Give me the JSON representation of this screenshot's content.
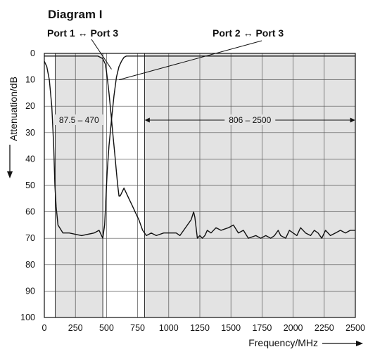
{
  "chart_data": {
    "type": "line",
    "title": "Diagram I",
    "xlabel": "Frequency/MHz",
    "ylabel": "Attenuation/dB",
    "xlim": [
      0,
      2500
    ],
    "ylim": [
      0,
      100
    ],
    "y_inverted": true,
    "grid": true,
    "x_ticks": [
      0,
      250,
      500,
      750,
      1000,
      1250,
      1500,
      1750,
      2000,
      2250,
      2500
    ],
    "y_ticks": [
      0,
      10,
      20,
      30,
      40,
      50,
      60,
      70,
      80,
      90,
      100
    ],
    "x_tick_labels": [
      "0",
      "250",
      "500",
      "750",
      "1000",
      "1250",
      "1500",
      "1750",
      "2000",
      "2250",
      "2500"
    ],
    "y_tick_labels": [
      "0",
      "10",
      "20",
      "30",
      "40",
      "50",
      "60",
      "70",
      "80",
      "90",
      "100"
    ],
    "shaded_bands": [
      {
        "label": "87.5 – 470",
        "x": [
          87.5,
          470
        ],
        "label_y": 25
      },
      {
        "label": "806 – 2500",
        "x": [
          806,
          2500
        ],
        "label_y": 25
      }
    ],
    "series": [
      {
        "name": "Port 1 ↔ Port 3",
        "label_at": {
          "x": 450,
          "y": 6
        },
        "x": [
          0,
          20,
          40,
          60,
          75,
          85,
          95,
          110,
          150,
          200,
          300,
          400,
          440,
          470,
          485,
          495,
          505,
          520,
          540,
          560,
          580,
          600,
          620,
          640,
          660,
          680,
          700,
          720,
          740,
          760,
          780,
          800,
          830,
          870,
          920,
          980,
          1040,
          1100,
          1140,
          1160,
          1180,
          1200,
          1215,
          1225,
          1240,
          1260,
          1290,
          1320,
          1360,
          1400,
          1460,
          1500,
          1560,
          1600,
          1640,
          1700,
          1750,
          1800,
          1820,
          1840,
          1860,
          1880,
          1900,
          1950,
          2000,
          2040,
          2080,
          2120,
          2160,
          2200,
          2240,
          2260,
          2280,
          2320,
          2360,
          2400,
          2430,
          2460,
          2480,
          2500
        ],
        "y": [
          3,
          5,
          10,
          20,
          35,
          50,
          58,
          65,
          68,
          68,
          69,
          68,
          67,
          70,
          65,
          55,
          45,
          35,
          25,
          16,
          9,
          5,
          3,
          1.5,
          1,
          1,
          1,
          1,
          1,
          1,
          1,
          1,
          1,
          1,
          1,
          1,
          1,
          1,
          1,
          1,
          1,
          1,
          1,
          1,
          1,
          1,
          1,
          1,
          1,
          1,
          1,
          1,
          1,
          1,
          1,
          1,
          1,
          1,
          1,
          1,
          1,
          1,
          1,
          1,
          1,
          1,
          1,
          1,
          1,
          1,
          1,
          1,
          1,
          1,
          1,
          1,
          1,
          1,
          1,
          1
        ]
      },
      {
        "name": "Port 2 ↔ Port 3",
        "label_at": {
          "x": 1600,
          "y": 7
        },
        "x": [
          0,
          40,
          70,
          90,
          120,
          200,
          300,
          400,
          430,
          450,
          470,
          490,
          500,
          510,
          520,
          530,
          540,
          550,
          560,
          570,
          580,
          590,
          600,
          610,
          620,
          640,
          660,
          680,
          700,
          720,
          740,
          760,
          790,
          820,
          860,
          900,
          960,
          1020,
          1060,
          1090,
          1120,
          1150,
          1180,
          1200,
          1210,
          1230,
          1250,
          1270,
          1290,
          1310,
          1340,
          1380,
          1420,
          1480,
          1520,
          1560,
          1600,
          1640,
          1700,
          1740,
          1780,
          1820,
          1850,
          1880,
          1900,
          1940,
          1970,
          2000,
          2030,
          2060,
          2100,
          2140,
          2170,
          2200,
          2230,
          2260,
          2300,
          2340,
          2380,
          2420,
          2460,
          2500
        ],
        "y": [
          1,
          1,
          1,
          1,
          1,
          1,
          1,
          1,
          1,
          1.5,
          2,
          4,
          7,
          11,
          15,
          20,
          25,
          30,
          35,
          40,
          45,
          50,
          54,
          54,
          53,
          51,
          53,
          55,
          57,
          59,
          61,
          63,
          67,
          69,
          68,
          69,
          68,
          68,
          68,
          69,
          67,
          65,
          63,
          60,
          62,
          70,
          69,
          70,
          69,
          67,
          68,
          66,
          67,
          66,
          65,
          68,
          67,
          70,
          69,
          70,
          69,
          70,
          69,
          67,
          69,
          70,
          67,
          68,
          69,
          66,
          68,
          69,
          67,
          68,
          70,
          67,
          69,
          68,
          67,
          68,
          67,
          67
        ]
      }
    ]
  }
}
